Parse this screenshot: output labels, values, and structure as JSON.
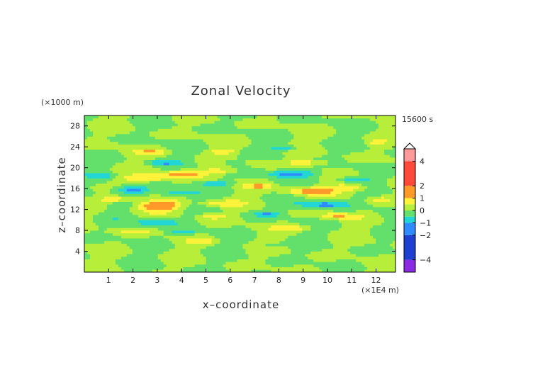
{
  "chart_data": {
    "type": "heatmap",
    "title": "Zonal Velocity",
    "xlabel": "x–coordinate",
    "ylabel": "z–coordinate",
    "x_unit": "(×1E4 m)",
    "y_unit": "(×1000 m)",
    "time_label": "15600 s",
    "xlim": [
      0,
      12.8
    ],
    "ylim": [
      0,
      30
    ],
    "x_ticks": [
      1,
      2,
      3,
      4,
      5,
      6,
      7,
      8,
      9,
      10,
      11,
      12
    ],
    "y_ticks": [
      4,
      8,
      12,
      16,
      20,
      24,
      28
    ],
    "colorbar": {
      "ticks": [
        4,
        2,
        1,
        0,
        -1,
        -2,
        -4
      ],
      "range": [
        -5,
        5
      ],
      "colors": {
        "lt_m4": "#8a2be2",
        "m4_m2": "#1f3fd0",
        "m2_m1": "#2f8cff",
        "m1_mhalf": "#23d6d6",
        "mhalf_0": "#62e06b",
        "zero_half": "#b7ee3a",
        "half_1": "#fff23a",
        "one_2": "#ff9a2a",
        "two_4": "#ff4a3a",
        "gt_4": "#ff9a9a"
      }
    },
    "features": [
      {
        "x": 3.1,
        "z": 12.8,
        "sx": 0.9,
        "sz": 1.0,
        "amp": 1.6
      },
      {
        "x": 2.0,
        "z": 15.8,
        "sx": 0.7,
        "sz": 0.7,
        "amp": -1.3
      },
      {
        "x": 3.8,
        "z": 15.1,
        "sx": 0.8,
        "sz": 0.7,
        "amp": -1.0
      },
      {
        "x": 4.0,
        "z": 18.8,
        "sx": 0.9,
        "sz": 0.8,
        "amp": 1.3
      },
      {
        "x": 2.5,
        "z": 18.0,
        "sx": 1.0,
        "sz": 0.6,
        "amp": 1.0
      },
      {
        "x": 3.0,
        "z": 9.6,
        "sx": 0.9,
        "sz": 0.9,
        "amp": -1.0
      },
      {
        "x": 1.3,
        "z": 14.0,
        "sx": 0.8,
        "sz": 0.6,
        "amp": 1.0
      },
      {
        "x": 3.2,
        "z": 21.0,
        "sx": 0.6,
        "sz": 0.5,
        "amp": -0.9
      },
      {
        "x": 2.8,
        "z": 23.1,
        "sx": 0.7,
        "sz": 0.5,
        "amp": 0.8
      },
      {
        "x": 4.1,
        "z": 7.7,
        "sx": 0.6,
        "sz": 0.5,
        "amp": -0.8
      },
      {
        "x": 5.5,
        "z": 13.2,
        "sx": 0.7,
        "sz": 0.6,
        "amp": 0.9
      },
      {
        "x": 5.4,
        "z": 17.0,
        "sx": 0.7,
        "sz": 0.5,
        "amp": -0.9
      },
      {
        "x": 5.5,
        "z": 19.4,
        "sx": 0.7,
        "sz": 0.5,
        "amp": 0.8
      },
      {
        "x": 5.7,
        "z": 23.2,
        "sx": 0.5,
        "sz": 0.5,
        "amp": 0.8
      },
      {
        "x": 5.3,
        "z": 10.8,
        "sx": 0.6,
        "sz": 0.6,
        "amp": 0.9
      },
      {
        "x": 6.2,
        "z": 21.0,
        "sx": 0.5,
        "sz": 0.5,
        "amp": -0.8
      },
      {
        "x": 4.9,
        "z": 6.0,
        "sx": 0.6,
        "sz": 0.5,
        "amp": 0.7
      },
      {
        "x": 8.5,
        "z": 18.9,
        "sx": 1.0,
        "sz": 0.7,
        "amp": -1.2
      },
      {
        "x": 9.8,
        "z": 13.0,
        "sx": 1.0,
        "sz": 0.7,
        "amp": -1.2
      },
      {
        "x": 9.2,
        "z": 15.5,
        "sx": 1.0,
        "sz": 0.7,
        "amp": 1.3
      },
      {
        "x": 11.0,
        "z": 16.2,
        "sx": 0.8,
        "sz": 0.7,
        "amp": 1.0
      },
      {
        "x": 10.4,
        "z": 10.8,
        "sx": 0.8,
        "sz": 0.6,
        "amp": 1.0
      },
      {
        "x": 11.0,
        "z": 17.8,
        "sx": 0.7,
        "sz": 0.5,
        "amp": -0.9
      },
      {
        "x": 9.1,
        "z": 21.0,
        "sx": 0.8,
        "sz": 0.5,
        "amp": 0.9
      },
      {
        "x": 8.3,
        "z": 23.8,
        "sx": 0.6,
        "sz": 0.5,
        "amp": -0.9
      },
      {
        "x": 8.6,
        "z": 8.5,
        "sx": 0.8,
        "sz": 0.5,
        "amp": 0.8
      },
      {
        "x": 7.2,
        "z": 16.5,
        "sx": 0.6,
        "sz": 0.5,
        "amp": 0.9
      },
      {
        "x": 7.1,
        "z": 21.0,
        "sx": 0.6,
        "sz": 0.5,
        "amp": 0.7
      },
      {
        "x": 7.5,
        "z": 11.2,
        "sx": 0.6,
        "sz": 0.6,
        "amp": -0.9
      },
      {
        "x": 7.8,
        "z": 5.3,
        "sx": 0.5,
        "sz": 0.4,
        "amp": -0.7
      },
      {
        "x": 12.2,
        "z": 13.8,
        "sx": 0.4,
        "sz": 0.6,
        "amp": 0.7
      },
      {
        "x": 0.8,
        "z": 18.5,
        "sx": 0.5,
        "sz": 0.5,
        "amp": -0.7
      },
      {
        "x": 12.0,
        "z": 24.8,
        "sx": 0.3,
        "sz": 0.4,
        "amp": 0.7
      },
      {
        "x": 1.0,
        "z": 24.5,
        "sx": 0.3,
        "sz": 0.4,
        "amp": 0.6
      },
      {
        "x": 2.1,
        "z": 7.8,
        "sx": 0.9,
        "sz": 0.5,
        "amp": 0.6
      }
    ]
  }
}
